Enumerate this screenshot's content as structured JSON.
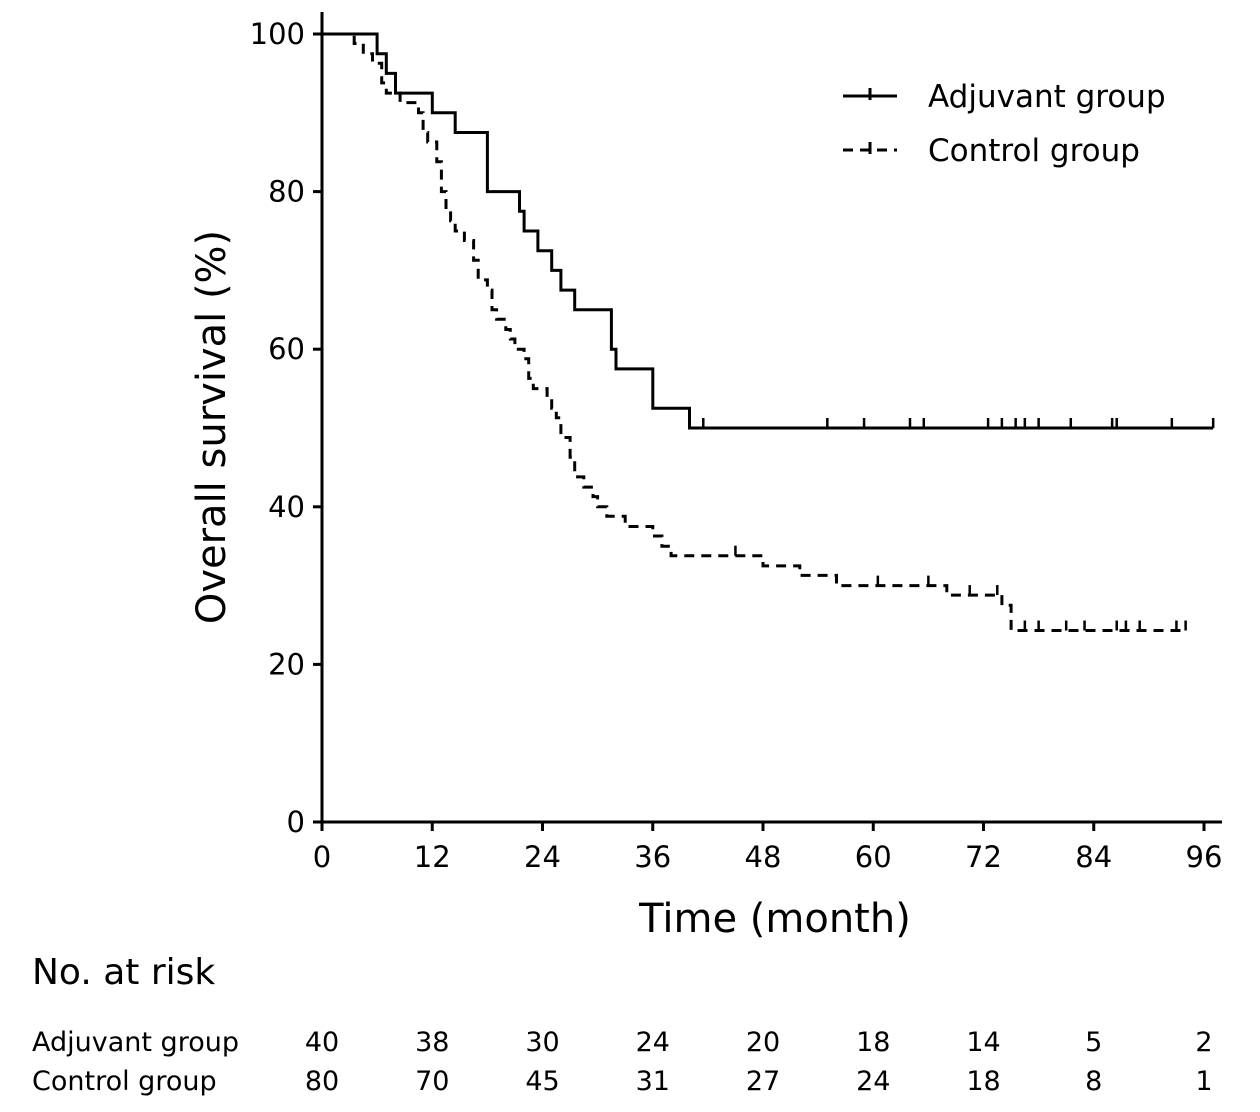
{
  "chart_data": {
    "type": "line",
    "xlabel": "Time (month)",
    "ylabel": "Overall survival (%)",
    "xlim": [
      0,
      96
    ],
    "ylim": [
      0,
      100
    ],
    "xticks": [
      "0",
      "12",
      "24",
      "36",
      "48",
      "60",
      "72",
      "84",
      "96"
    ],
    "yticks": [
      "0",
      "20",
      "40",
      "60",
      "80",
      "100"
    ],
    "grid": false,
    "legend_position": "top-right",
    "series": [
      {
        "name": "Adjuvant group",
        "line_style": "solid",
        "points": [
          [
            0,
            100
          ],
          [
            6,
            100
          ],
          [
            6,
            97.5
          ],
          [
            7,
            97.5
          ],
          [
            7,
            95
          ],
          [
            8,
            95
          ],
          [
            8,
            92.5
          ],
          [
            12,
            92.5
          ],
          [
            12,
            90
          ],
          [
            14.5,
            90
          ],
          [
            14.5,
            87.5
          ],
          [
            18,
            87.5
          ],
          [
            18,
            80
          ],
          [
            21.5,
            80
          ],
          [
            21.5,
            77.5
          ],
          [
            22,
            77.5
          ],
          [
            22,
            75
          ],
          [
            23.5,
            75
          ],
          [
            23.5,
            72.5
          ],
          [
            25,
            72.5
          ],
          [
            25,
            70
          ],
          [
            26,
            70
          ],
          [
            26,
            67.5
          ],
          [
            27.5,
            67.5
          ],
          [
            27.5,
            65
          ],
          [
            31.5,
            65
          ],
          [
            31.5,
            60
          ],
          [
            32,
            60
          ],
          [
            32,
            57.5
          ],
          [
            36,
            57.5
          ],
          [
            36,
            52.5
          ],
          [
            40,
            52.5
          ],
          [
            40,
            50
          ],
          [
            97,
            50
          ]
        ],
        "censored": [
          41.5,
          55,
          59,
          64,
          65.5,
          72.5,
          74,
          75.5,
          76.5,
          78,
          81.5,
          86,
          86.5,
          92.5,
          97
        ]
      },
      {
        "name": "Control group",
        "line_style": "dashed",
        "points": [
          [
            0,
            100
          ],
          [
            3.5,
            100
          ],
          [
            3.5,
            98.8
          ],
          [
            4.5,
            98.8
          ],
          [
            4.5,
            97.5
          ],
          [
            5.5,
            97.5
          ],
          [
            5.5,
            96.3
          ],
          [
            6.5,
            96.3
          ],
          [
            6.5,
            93.8
          ],
          [
            7,
            93.8
          ],
          [
            7,
            92.5
          ],
          [
            8.5,
            92.5
          ],
          [
            8.5,
            91.3
          ],
          [
            10.5,
            91.3
          ],
          [
            10.5,
            90
          ],
          [
            11,
            90
          ],
          [
            11,
            87.5
          ],
          [
            11.5,
            87.5
          ],
          [
            11.5,
            86.3
          ],
          [
            12.5,
            86.3
          ],
          [
            12.5,
            83.8
          ],
          [
            13,
            83.8
          ],
          [
            13,
            80
          ],
          [
            13.5,
            80
          ],
          [
            13.5,
            77.5
          ],
          [
            14,
            77.5
          ],
          [
            14,
            76.3
          ],
          [
            14.5,
            76.3
          ],
          [
            14.5,
            75
          ],
          [
            15.5,
            75
          ],
          [
            15.5,
            73.8
          ],
          [
            16.5,
            73.8
          ],
          [
            16.5,
            71.3
          ],
          [
            17,
            71.3
          ],
          [
            17,
            68.8
          ],
          [
            18,
            68.8
          ],
          [
            18,
            67.5
          ],
          [
            18.5,
            67.5
          ],
          [
            18.5,
            65
          ],
          [
            19,
            65
          ],
          [
            19,
            63.8
          ],
          [
            20,
            63.8
          ],
          [
            20,
            62.5
          ],
          [
            20.5,
            62.5
          ],
          [
            20.5,
            61.3
          ],
          [
            21,
            61.3
          ],
          [
            21,
            60
          ],
          [
            22,
            60
          ],
          [
            22,
            58.8
          ],
          [
            22.5,
            58.8
          ],
          [
            22.5,
            56.3
          ],
          [
            23,
            56.3
          ],
          [
            23,
            55
          ],
          [
            24.5,
            55
          ],
          [
            24.5,
            53.8
          ],
          [
            25,
            53.8
          ],
          [
            25,
            52.5
          ],
          [
            25.5,
            52.5
          ],
          [
            25.5,
            51.3
          ],
          [
            26,
            51.3
          ],
          [
            26,
            48.8
          ],
          [
            27,
            48.8
          ],
          [
            27,
            46.3
          ],
          [
            27.5,
            46.3
          ],
          [
            27.5,
            43.8
          ],
          [
            28.5,
            43.8
          ],
          [
            28.5,
            42.5
          ],
          [
            29.5,
            42.5
          ],
          [
            29.5,
            41.3
          ],
          [
            30,
            41.3
          ],
          [
            30,
            40
          ],
          [
            31,
            40
          ],
          [
            31,
            38.8
          ],
          [
            33,
            38.8
          ],
          [
            33,
            37.5
          ],
          [
            36,
            37.5
          ],
          [
            36,
            36.3
          ],
          [
            37,
            36.3
          ],
          [
            37,
            35
          ],
          [
            38,
            35
          ],
          [
            38,
            33.8
          ],
          [
            48,
            33.8
          ],
          [
            48,
            32.5
          ],
          [
            52,
            32.5
          ],
          [
            52,
            31.3
          ],
          [
            56,
            31.3
          ],
          [
            56,
            30
          ],
          [
            63,
            30
          ],
          [
            63,
            30
          ],
          [
            68,
            30
          ],
          [
            68,
            28.8
          ],
          [
            72,
            28.8
          ],
          [
            72,
            28.8
          ],
          [
            74,
            28.8
          ],
          [
            74,
            27.5
          ],
          [
            75,
            27.5
          ],
          [
            75,
            24.3
          ],
          [
            94,
            24.3
          ]
        ],
        "censored": [
          45,
          60.5,
          66,
          70.5,
          73.5,
          76.5,
          78,
          81,
          83,
          86.5,
          87.5,
          89,
          93,
          94
        ]
      }
    ]
  },
  "risk_table": {
    "title": "No. at risk",
    "rows": [
      {
        "label": "Adjuvant group",
        "values": [
          "40",
          "38",
          "30",
          "24",
          "20",
          "18",
          "14",
          "5",
          "2"
        ]
      },
      {
        "label": "Control group",
        "values": [
          "80",
          "70",
          "45",
          "31",
          "27",
          "24",
          "18",
          "8",
          "1"
        ]
      }
    ]
  }
}
